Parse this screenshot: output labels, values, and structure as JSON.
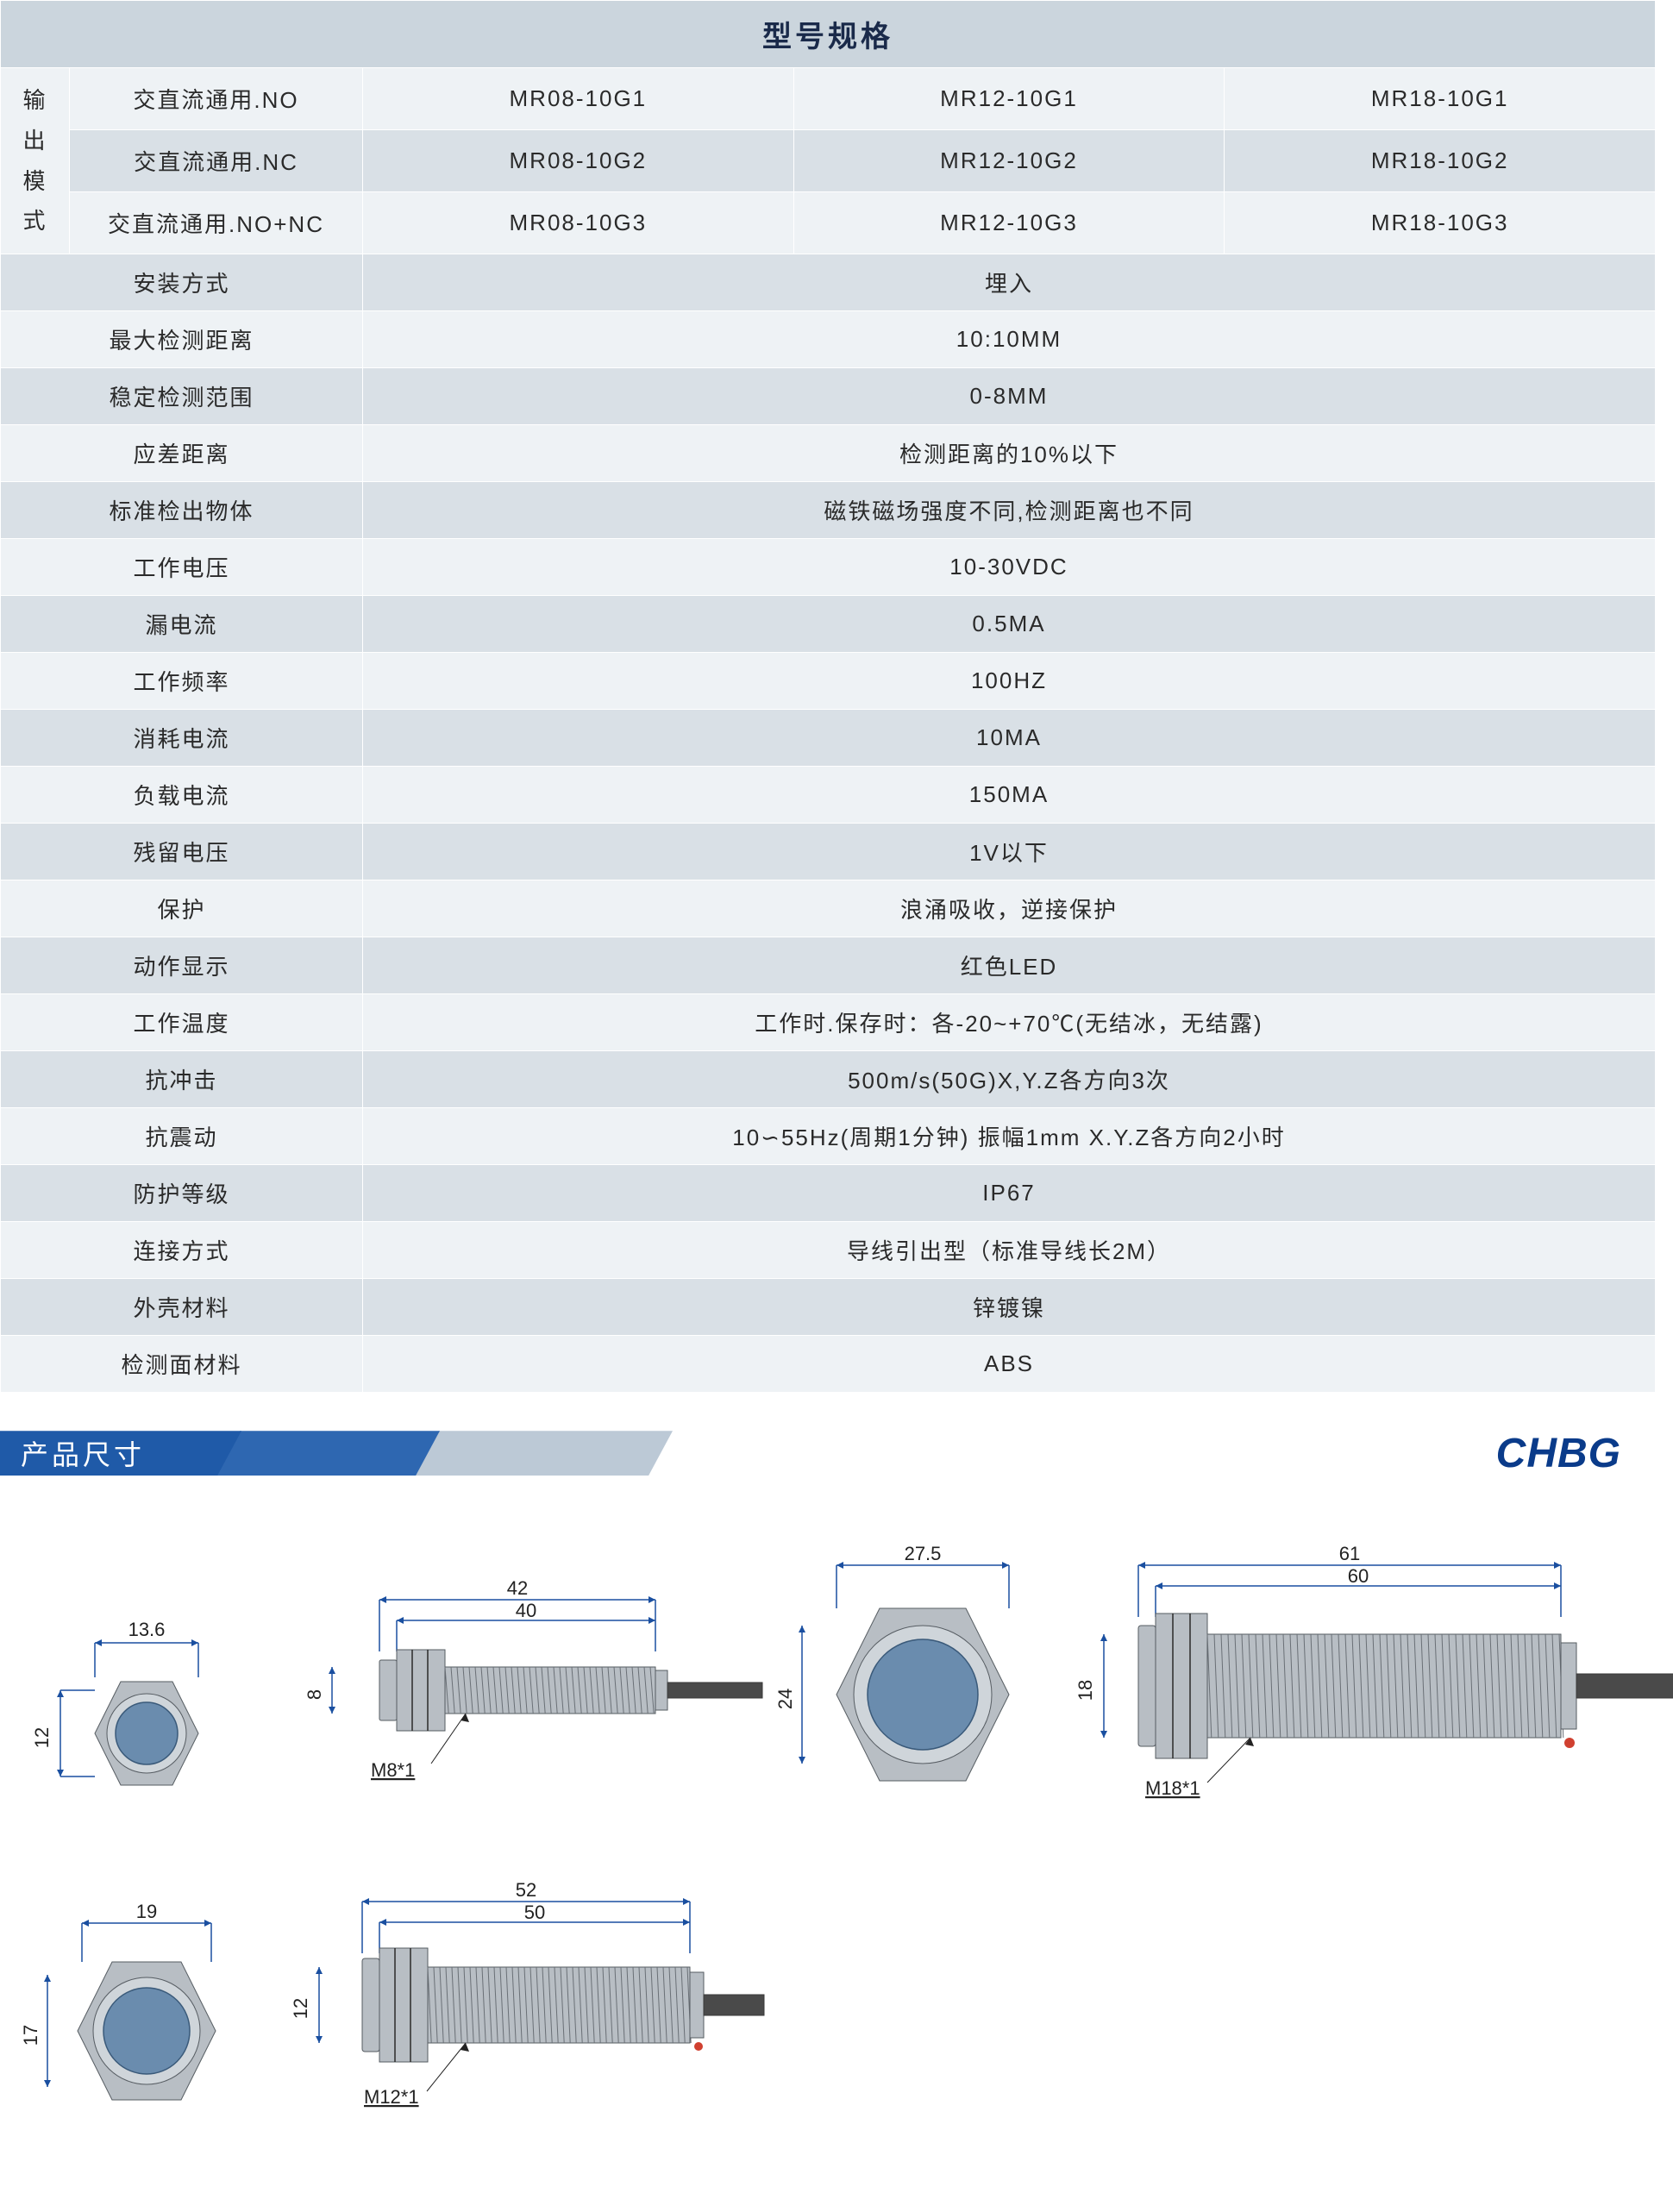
{
  "table": {
    "title": "型号规格",
    "output_mode_vertical": "输\n出\n模\n式",
    "head_rows": [
      {
        "label": "交直流通用.NO",
        "v1": "MR08-10G1",
        "v2": "MR12-10G1",
        "v3": "MR18-10G1"
      },
      {
        "label": "交直流通用.NC",
        "v1": "MR08-10G2",
        "v2": "MR12-10G2",
        "v3": "MR18-10G2"
      },
      {
        "label": "交直流通用.NO+NC",
        "v1": "MR08-10G3",
        "v2": "MR12-10G3",
        "v3": "MR18-10G3"
      }
    ],
    "spec_rows": [
      {
        "label": "安装方式",
        "value": "埋入"
      },
      {
        "label": "最大检测距离",
        "value": "10:10MM"
      },
      {
        "label": "稳定检测范围",
        "value": "0-8MM"
      },
      {
        "label": "应差距离",
        "value": "检测距离的10%以下"
      },
      {
        "label": "标准检出物体",
        "value": "磁铁磁场强度不同,检测距离也不同"
      },
      {
        "label": "工作电压",
        "value": "10-30VDC"
      },
      {
        "label": "漏电流",
        "value": "0.5MA"
      },
      {
        "label": "工作频率",
        "value": "100HZ"
      },
      {
        "label": "消耗电流",
        "value": "10MA"
      },
      {
        "label": "负载电流",
        "value": "150MA"
      },
      {
        "label": "残留电压",
        "value": "1V以下"
      },
      {
        "label": "保护",
        "value": "浪涌吸收，逆接保护"
      },
      {
        "label": "动作显示",
        "value": "红色LED"
      },
      {
        "label": "工作温度",
        "value": "工作时.保存时：各-20~+70℃(无结冰，无结露)"
      },
      {
        "label": "抗冲击",
        "value": "500m/s(50G)X,Y.Z各方向3次"
      },
      {
        "label": "抗震动",
        "value": "10∽55Hz(周期1分钟) 振幅1mm X.Y.Z各方向2小时"
      },
      {
        "label": "防护等级",
        "value": "IP67"
      },
      {
        "label": "连接方式",
        "value": "导线引出型（标准导线长2M）"
      },
      {
        "label": "外壳材料",
        "value": "锌镀镍"
      },
      {
        "label": "检测面材料",
        "value": "ABS"
      }
    ],
    "row_b_bg": "#d9e0e6",
    "row_a_bg": "#eef2f5",
    "header_bg": "#cbd5dd"
  },
  "section": {
    "title": "产品尺寸",
    "brand": "CHBG",
    "bar_color_main": "#1f5aa8",
    "bar_color_mid": "#2e67b1",
    "bar_color_tail": "#bcc9d6",
    "brand_color": "#0a3b8a"
  },
  "diagrams": {
    "hex_m8": {
      "across_flats": "13.6",
      "height": "12"
    },
    "cyl_m8": {
      "total_len": "42",
      "thread_len": "40",
      "diameter": "8",
      "thread_label": "M8*1"
    },
    "hex_m18": {
      "across_flats": "27.5",
      "height": "24"
    },
    "cyl_m18": {
      "total_len": "61",
      "thread_len": "60",
      "diameter": "18",
      "thread_label": "M18*1"
    },
    "hex_m12": {
      "across_flats": "19",
      "height": "17"
    },
    "cyl_m12": {
      "total_len": "52",
      "thread_len": "50",
      "diameter": "12",
      "thread_label": "M12*1"
    },
    "dim_line_color": "#1a4fa0",
    "metal_fill": "#b8bec4",
    "face_fill": "#6a8cae"
  }
}
